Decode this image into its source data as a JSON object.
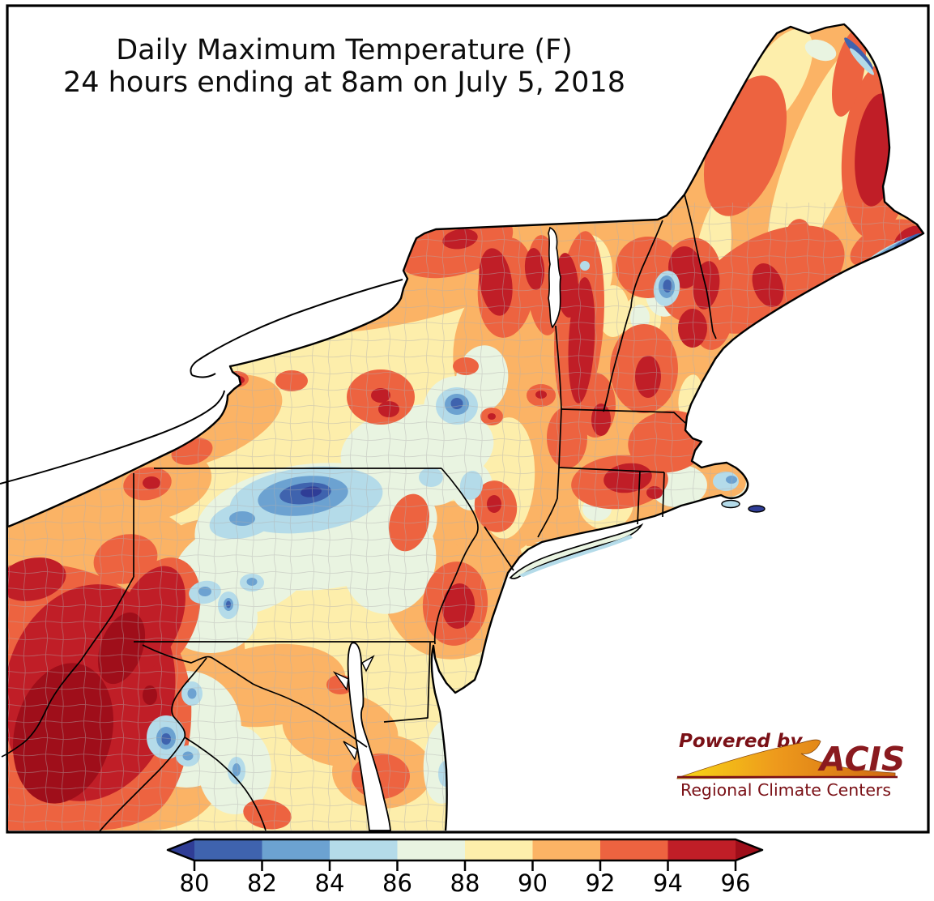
{
  "title": {
    "line1": "Daily Maximum Temperature (F)",
    "line2": "24 hours ending at 8am on July 5, 2018"
  },
  "colorbar": {
    "tick_labels": [
      "80",
      "82",
      "84",
      "86",
      "88",
      "90",
      "92",
      "94",
      "96"
    ],
    "segment_colors": [
      "#3f63ae",
      "#6ca2d1",
      "#b4dbe9",
      "#e9f4e1",
      "#fdeeab",
      "#fbb365",
      "#ed6340",
      "#c01e27"
    ],
    "under_arrow_color": "#2f3d96",
    "over_arrow_color": "#9f0e1a"
  },
  "map": {
    "palette": {
      "below_80": "#2f3d96",
      "f80_82": "#3f63ae",
      "f82_84": "#6ca2d1",
      "f84_86": "#b4dbe9",
      "f86_88": "#e9f4e1",
      "f88_90": "#fdeeab",
      "f90_92": "#fbb365",
      "f92_94": "#ed6340",
      "f94_96": "#c01e27",
      "above_96": "#9f0e1a"
    }
  },
  "logo": {
    "powered_by": "Powered by",
    "name": "ACIS",
    "subtitle": "Regional Climate Centers",
    "text_color": "#7a1016"
  }
}
